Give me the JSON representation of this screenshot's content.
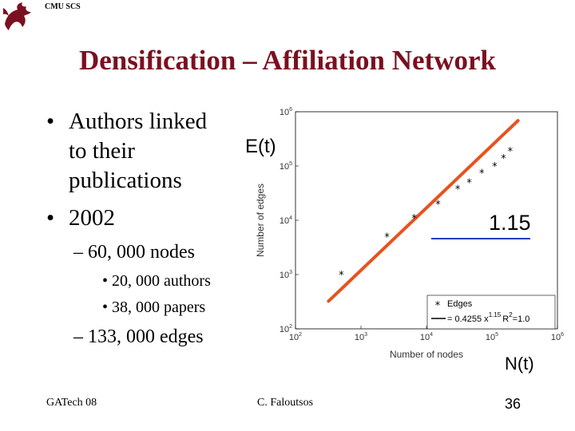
{
  "header": {
    "label": "CMU SCS",
    "logo_icon": "dragon-icon"
  },
  "title": "Densification – Affiliation Network",
  "bullets": {
    "b1_marker": "•",
    "b1_lines": [
      "Authors linked",
      "to their",
      "publications"
    ],
    "b2_marker": "•",
    "b2": "2002",
    "sub_nodes": "– 60, 000 nodes",
    "sub_authors": "• 20, 000 authors",
    "sub_papers": "• 38, 000 papers",
    "sub_edges": "– 133, 000 edges"
  },
  "footer": {
    "left": "GATech 08",
    "center": "C. Faloutsos",
    "page": "36"
  },
  "annotations": {
    "et": "E(t)",
    "nt": "N(t)",
    "slope": "1.15",
    "slope_line_color": "#1f3dbf"
  },
  "chart_data": {
    "type": "scatter",
    "xlabel": "Number of nodes",
    "ylabel": "Number of edges",
    "xscale": "log",
    "yscale": "log",
    "xlim": [
      100,
      1000000
    ],
    "ylim": [
      100,
      1000000
    ],
    "x_ticks": [
      {
        "value": 100,
        "base": "10",
        "exp": "2"
      },
      {
        "value": 1000,
        "base": "10",
        "exp": "3"
      },
      {
        "value": 10000,
        "base": "10",
        "exp": "4"
      },
      {
        "value": 100000,
        "base": "10",
        "exp": "5"
      },
      {
        "value": 1000000,
        "base": "10",
        "exp": "6"
      }
    ],
    "y_ticks": [
      {
        "value": 100,
        "base": "10",
        "exp": "2"
      },
      {
        "value": 1000,
        "base": "10",
        "exp": "3"
      },
      {
        "value": 10000,
        "base": "10",
        "exp": "4"
      },
      {
        "value": 100000,
        "base": "10",
        "exp": "5"
      },
      {
        "value": 1000000,
        "base": "10",
        "exp": "6"
      }
    ],
    "series": [
      {
        "name": "Edges",
        "marker": "*",
        "points": [
          {
            "x": 500,
            "y": 1000
          },
          {
            "x": 2500,
            "y": 5000
          },
          {
            "x": 6500,
            "y": 11000
          },
          {
            "x": 15000,
            "y": 20000
          },
          {
            "x": 30000,
            "y": 38000
          },
          {
            "x": 45000,
            "y": 50000
          },
          {
            "x": 70000,
            "y": 75000
          },
          {
            "x": 110000,
            "y": 100000
          },
          {
            "x": 150000,
            "y": 140000
          },
          {
            "x": 190000,
            "y": 190000
          }
        ]
      }
    ],
    "fit": {
      "coefficient": 0.4255,
      "exponent": 1.15,
      "x_range": [
        320,
        250000
      ],
      "color": "#e8521e",
      "legend_prefix": "= 0.4255 x",
      "legend_exp": "1.15",
      "legend_r2": "R",
      "legend_r2_exp": "2",
      "legend_r2_val": "=1.0"
    },
    "legend": {
      "position": "bottom-right"
    }
  }
}
